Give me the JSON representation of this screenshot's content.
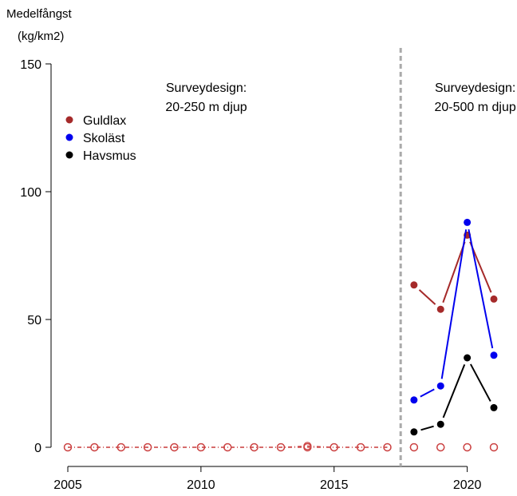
{
  "chart_data": {
    "type": "line",
    "title": "",
    "ylabel_lines": [
      "Medelfångst",
      "(kg/km2)"
    ],
    "xlabel": "",
    "xlim": [
      2005,
      2021
    ],
    "ylim": [
      0,
      150
    ],
    "xticks": [
      2005,
      2010,
      2015,
      2020
    ],
    "yticks": [
      0,
      50,
      100,
      150
    ],
    "grid": false,
    "legend_position": "top-left",
    "survey_change_x": 2017.5,
    "survey_change_color": "#aaaaaa",
    "annotations": [
      {
        "lines": [
          "Surveydesign:",
          "20-250 m djup"
        ],
        "x": 2010.2,
        "y": 139
      },
      {
        "lines": [
          "Surveydesign:",
          "20-500 m djup"
        ],
        "x": 2020.3,
        "y": 139
      }
    ],
    "series": [
      {
        "name": "Guldlax",
        "color": "#a52a2a",
        "period1": {
          "x": [
            2005,
            2006,
            2007,
            2008,
            2009,
            2010,
            2011,
            2012,
            2013,
            2014,
            2015,
            2016,
            2017
          ],
          "y": [
            0,
            0,
            0,
            0,
            0,
            0,
            0,
            0,
            0,
            0.5,
            0,
            0,
            0
          ]
        },
        "period2": {
          "x": [
            2018,
            2019,
            2020,
            2021
          ],
          "y": [
            63.5,
            54,
            83,
            58
          ]
        }
      },
      {
        "name": "Skoläst",
        "color": "#0000ee",
        "period1": {
          "x": [
            2005,
            2006,
            2007,
            2008,
            2009,
            2010,
            2011,
            2012,
            2013,
            2014,
            2015,
            2016,
            2017
          ],
          "y": [
            0,
            0,
            0,
            0,
            0,
            0,
            0,
            0,
            0,
            0,
            0,
            0,
            0
          ]
        },
        "period2": {
          "x": [
            2018,
            2019,
            2020,
            2021
          ],
          "y": [
            18.5,
            24,
            88,
            36
          ]
        }
      },
      {
        "name": "Havsmus",
        "color": "#000000",
        "period1": {
          "x": [
            2005,
            2006,
            2007,
            2008,
            2009,
            2010,
            2011,
            2012,
            2013,
            2014,
            2015,
            2016,
            2017
          ],
          "y": [
            0,
            0,
            0,
            0,
            0,
            0,
            0,
            0,
            0,
            0,
            0,
            0,
            0
          ]
        },
        "period2": {
          "x": [
            2018,
            2019,
            2020,
            2021
          ],
          "y": [
            6,
            9,
            35,
            15.5
          ]
        }
      }
    ],
    "period1_marker_color": "#cc4444"
  }
}
